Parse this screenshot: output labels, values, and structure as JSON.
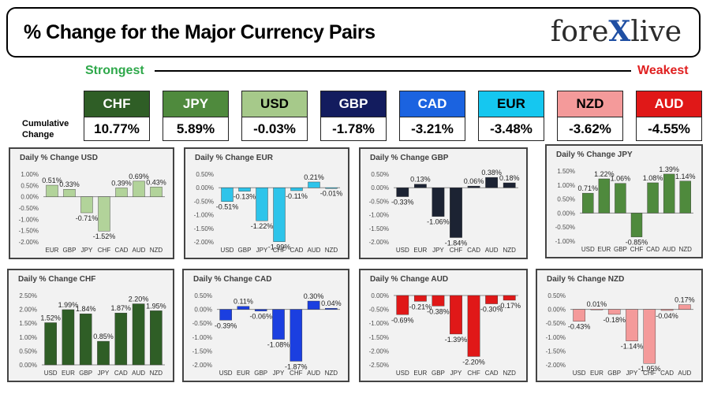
{
  "header": {
    "title": "% Change for the Major Currency Pairs",
    "logo": "forexlive"
  },
  "labels": {
    "strongest": "Strongest",
    "weakest": "Weakest",
    "cumulative": "Cumulative Change"
  },
  "currencies": [
    {
      "name": "CHF",
      "value": "10.77%",
      "bg": "#2f5e26",
      "fg": "#ffffff"
    },
    {
      "name": "JPY",
      "value": "5.89%",
      "bg": "#4f8a3d",
      "fg": "#ffffff"
    },
    {
      "name": "USD",
      "value": "-0.03%",
      "bg": "#a6c98a",
      "fg": "#000000"
    },
    {
      "name": "GBP",
      "value": "-1.78%",
      "bg": "#131c5e",
      "fg": "#ffffff"
    },
    {
      "name": "CAD",
      "value": "-3.21%",
      "bg": "#1b63e0",
      "fg": "#ffffff"
    },
    {
      "name": "EUR",
      "value": "-3.48%",
      "bg": "#15c7f0",
      "fg": "#000000"
    },
    {
      "name": "NZD",
      "value": "-3.62%",
      "bg": "#f49a9a",
      "fg": "#000000"
    },
    {
      "name": "AUD",
      "value": "-4.55%",
      "bg": "#e01818",
      "fg": "#ffffff"
    }
  ],
  "chart_data": [
    {
      "type": "bar",
      "title": "Daily % Change USD",
      "categories": [
        "EUR",
        "GBP",
        "JPY",
        "CHF",
        "CAD",
        "AUD",
        "NZD"
      ],
      "values": [
        0.51,
        0.33,
        -0.71,
        -1.52,
        0.39,
        0.69,
        0.43
      ],
      "ylim": [
        -2.0,
        1.0
      ],
      "ticks": [
        1.0,
        0.5,
        0.0,
        -0.5,
        -1.0,
        -1.5,
        -2.0
      ],
      "color_up": "#b2d39a",
      "color_down": "#b2d39a"
    },
    {
      "type": "bar",
      "title": "Daily % Change EUR",
      "categories": [
        "USD",
        "GBP",
        "JPY",
        "CHF",
        "CAD",
        "AUD",
        "NZD"
      ],
      "values": [
        -0.51,
        -0.13,
        -1.22,
        -1.99,
        -0.11,
        0.21,
        -0.01
      ],
      "ylim": [
        -2.0,
        0.5
      ],
      "ticks": [
        0.5,
        0.0,
        -0.5,
        -1.0,
        -1.5,
        -2.0
      ],
      "color_up": "#2ec4ea",
      "color_down": "#2ec4ea"
    },
    {
      "type": "bar",
      "title": "Daily % Change GBP",
      "categories": [
        "USD",
        "EUR",
        "JPY",
        "CHF",
        "CAD",
        "AUD",
        "NZD"
      ],
      "values": [
        -0.33,
        0.13,
        -1.06,
        -1.84,
        0.06,
        0.38,
        0.18
      ],
      "ylim": [
        -2.0,
        0.5
      ],
      "ticks": [
        0.5,
        0.0,
        -0.5,
        -1.0,
        -1.5,
        -2.0
      ],
      "color_up": "#1c2333",
      "color_down": "#1c2333"
    },
    {
      "type": "bar",
      "title": "Daily % Change JPY",
      "categories": [
        "USD",
        "EUR",
        "GBP",
        "CHF",
        "CAD",
        "AUD",
        "NZD"
      ],
      "values": [
        0.71,
        1.22,
        1.06,
        -0.85,
        1.08,
        1.39,
        1.14
      ],
      "ylim": [
        -1.0,
        1.5
      ],
      "ticks": [
        1.5,
        1.0,
        0.5,
        0.0,
        -0.5,
        -1.0
      ],
      "color_up": "#4f8a3d",
      "color_down": "#4f8a3d"
    },
    {
      "type": "bar",
      "title": "Daily % Change CHF",
      "categories": [
        "USD",
        "EUR",
        "GBP",
        "JPY",
        "CAD",
        "AUD",
        "NZD"
      ],
      "values": [
        1.52,
        1.99,
        1.84,
        0.85,
        1.87,
        2.2,
        1.95
      ],
      "ylim": [
        0.0,
        2.5
      ],
      "ticks": [
        2.5,
        2.0,
        1.5,
        1.0,
        0.5,
        0.0
      ],
      "color_up": "#2f5e26",
      "color_down": "#2f5e26"
    },
    {
      "type": "bar",
      "title": "Daily % Change CAD",
      "categories": [
        "USD",
        "EUR",
        "GBP",
        "JPY",
        "CHF",
        "AUD",
        "NZD"
      ],
      "values": [
        -0.39,
        0.11,
        -0.06,
        -1.08,
        -1.87,
        0.3,
        0.04
      ],
      "ylim": [
        -2.0,
        0.5
      ],
      "ticks": [
        0.5,
        0.0,
        -0.5,
        -1.0,
        -1.5,
        -2.0
      ],
      "color_up": "#1b3fe0",
      "color_down": "#1b3fe0"
    },
    {
      "type": "bar",
      "title": "Daily % Change AUD",
      "categories": [
        "USD",
        "EUR",
        "GBP",
        "JPY",
        "CHF",
        "CAD",
        "NZD"
      ],
      "values": [
        -0.69,
        -0.21,
        -0.38,
        -1.39,
        -2.2,
        -0.3,
        -0.17
      ],
      "ylim": [
        -2.5,
        0.0
      ],
      "ticks": [
        0.0,
        -0.5,
        -1.0,
        -1.5,
        -2.0,
        -2.5
      ],
      "color_up": "#e01818",
      "color_down": "#e01818"
    },
    {
      "type": "bar",
      "title": "Daily % Change NZD",
      "categories": [
        "USD",
        "EUR",
        "GBP",
        "JPY",
        "CHF",
        "CAD",
        "AUD"
      ],
      "values": [
        -0.43,
        0.01,
        -0.18,
        -1.14,
        -1.95,
        -0.04,
        0.17
      ],
      "ylim": [
        -2.0,
        0.5
      ],
      "ticks": [
        0.5,
        0.0,
        -0.5,
        -1.0,
        -1.5,
        -2.0
      ],
      "color_up": "#f49a9a",
      "color_down": "#f49a9a"
    }
  ]
}
